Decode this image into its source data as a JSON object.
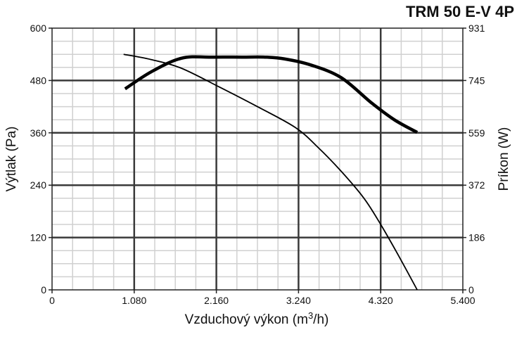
{
  "chart_data": {
    "type": "line",
    "title": "TRM 50 E-V 4P",
    "xlabel_main": "Vzduchový výkon (m",
    "xlabel_sup": "3",
    "xlabel_tail": "/h)",
    "ylabel": "Výtlak (Pa)",
    "y2label": "Príkon (W)",
    "xlim": [
      0,
      5400
    ],
    "ylim": [
      0,
      600
    ],
    "y2lim": [
      0,
      931
    ],
    "x_tick_labels": [
      "0",
      "1.080",
      "2.160",
      "3.240",
      "4.320",
      "5.400"
    ],
    "y_tick_labels": [
      "0",
      "120",
      "240",
      "360",
      "480",
      "600"
    ],
    "y2_tick_labels": [
      "0",
      "186",
      "372",
      "559",
      "745",
      "931"
    ],
    "grid": true,
    "series": [
      {
        "axis": "left",
        "x": [
          940,
          1300,
          1700,
          2200,
          2700,
          3200,
          3500,
          3800,
          4100,
          4320,
          4550,
          4800
        ],
        "y": [
          540,
          528,
          508,
          465,
          420,
          372,
          326,
          272,
          210,
          150,
          80,
          0
        ]
      },
      {
        "axis": "right",
        "x": [
          960,
          1300,
          1700,
          2100,
          2500,
          2800,
          3050,
          3400,
          3800,
          4200,
          4500,
          4800
        ],
        "y": [
          715,
          775,
          824,
          828,
          828,
          828,
          822,
          800,
          755,
          665,
          605,
          560
        ]
      }
    ]
  }
}
